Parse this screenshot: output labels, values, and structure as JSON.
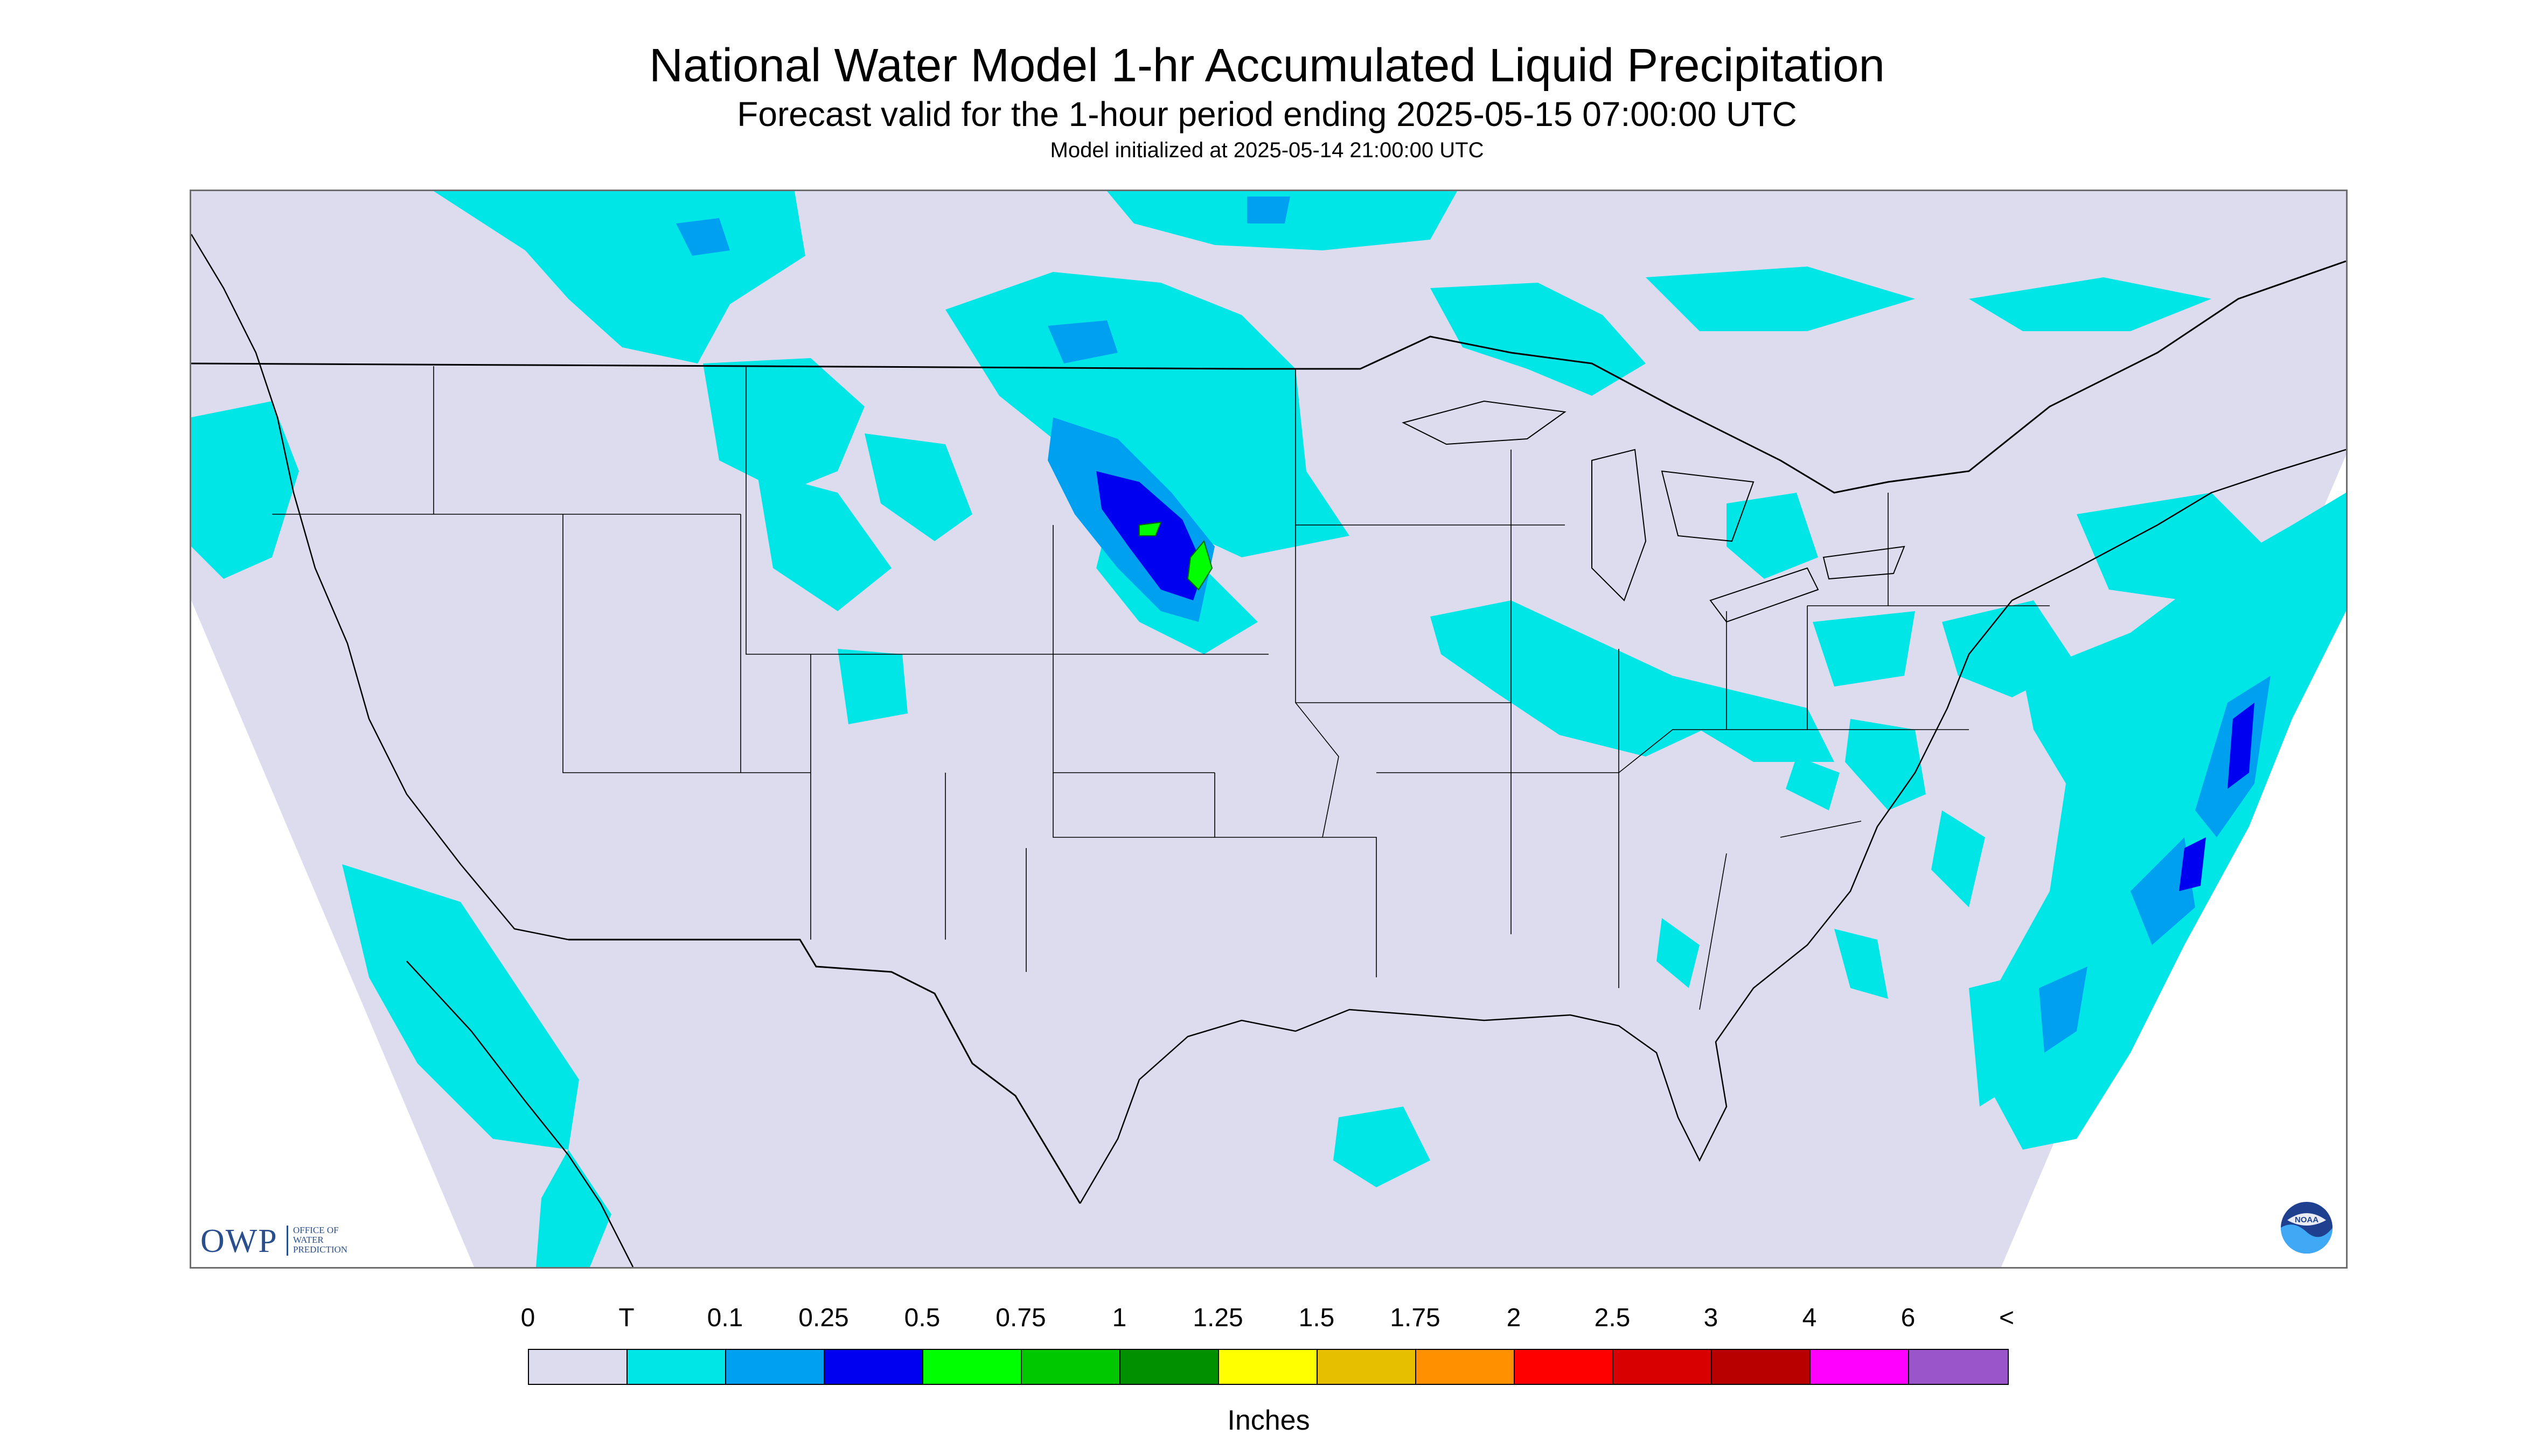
{
  "title": "National Water Model 1-hr Accumulated Liquid Precipitation",
  "subtitle": "Forecast valid for the 1-hour period ending 2025-05-15 07:00:00 UTC",
  "init_line": "Model initialized at 2025-05-14 21:00:00 UTC",
  "logos": {
    "owp_letters": "OWP",
    "owp_subtext": "OFFICE OF\nWATER\nPREDICTION",
    "noaa_text": "NOAA"
  },
  "legend": {
    "tick_labels": [
      "0",
      "T",
      "0.1",
      "0.25",
      "0.5",
      "0.75",
      "1",
      "1.25",
      "1.5",
      "1.75",
      "2",
      "2.5",
      "3",
      "4",
      "6",
      "<"
    ],
    "colors": [
      "#dcdcee",
      "#00e6e6",
      "#00a0f0",
      "#0000f0",
      "#00ff00",
      "#00c800",
      "#009000",
      "#ffff00",
      "#e6c000",
      "#ff9000",
      "#ff0000",
      "#d80000",
      "#b80000",
      "#ff00ff",
      "#9955c9"
    ],
    "unit": "Inches"
  },
  "map_colors": {
    "background": "#dcdcee",
    "trace": "#00e6e6",
    "light": "#00a0f0",
    "moderate": "#0000f0",
    "heavy": "#00ff00",
    "boundary": "#000000",
    "outside": "#ffffff"
  }
}
